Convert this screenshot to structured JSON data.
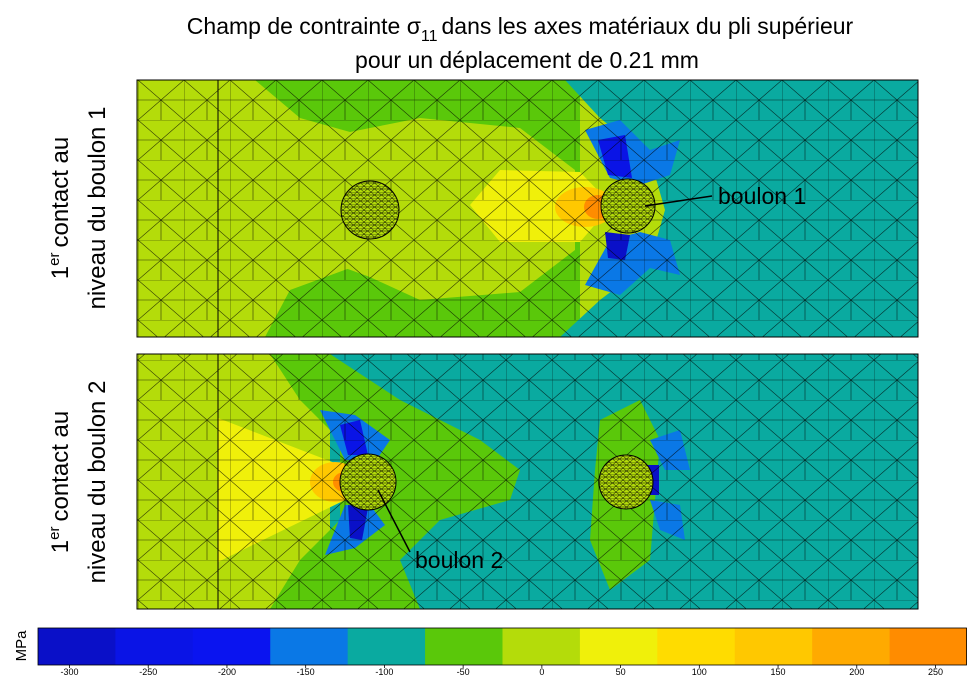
{
  "title": {
    "text": "Champ de contrainte σ",
    "subscript": "11",
    "rest": "dans les axes matériaux du pli supérieur",
    "subtitle": "pour un déplacement de 0.21 mm"
  },
  "panels": [
    {
      "label_number": "1",
      "label_superscript": "er",
      "label_line1": "contact au",
      "label_line2": "niveau du boulon 1",
      "annotation": "boulon 1"
    },
    {
      "label_number": "1",
      "label_superscript": "er",
      "label_line1": "contact au",
      "label_line2": "niveau du boulon 2",
      "annotation": "boulon 2"
    }
  ],
  "colorbar": {
    "unit": "MPa",
    "range": [
      -320,
      270
    ],
    "ticks": [
      -300,
      -250,
      -200,
      -150,
      -100,
      -50,
      0,
      50,
      100,
      150,
      200,
      250
    ],
    "colors": [
      "#0a10c8",
      "#0a14e6",
      "#0a14f0",
      "#0a78e6",
      "#0aaaa0",
      "#5ac80a",
      "#b4dc0a",
      "#f0f00a",
      "#ffdc00",
      "#ffc800",
      "#ffaa00",
      "#ff8c00"
    ]
  }
}
